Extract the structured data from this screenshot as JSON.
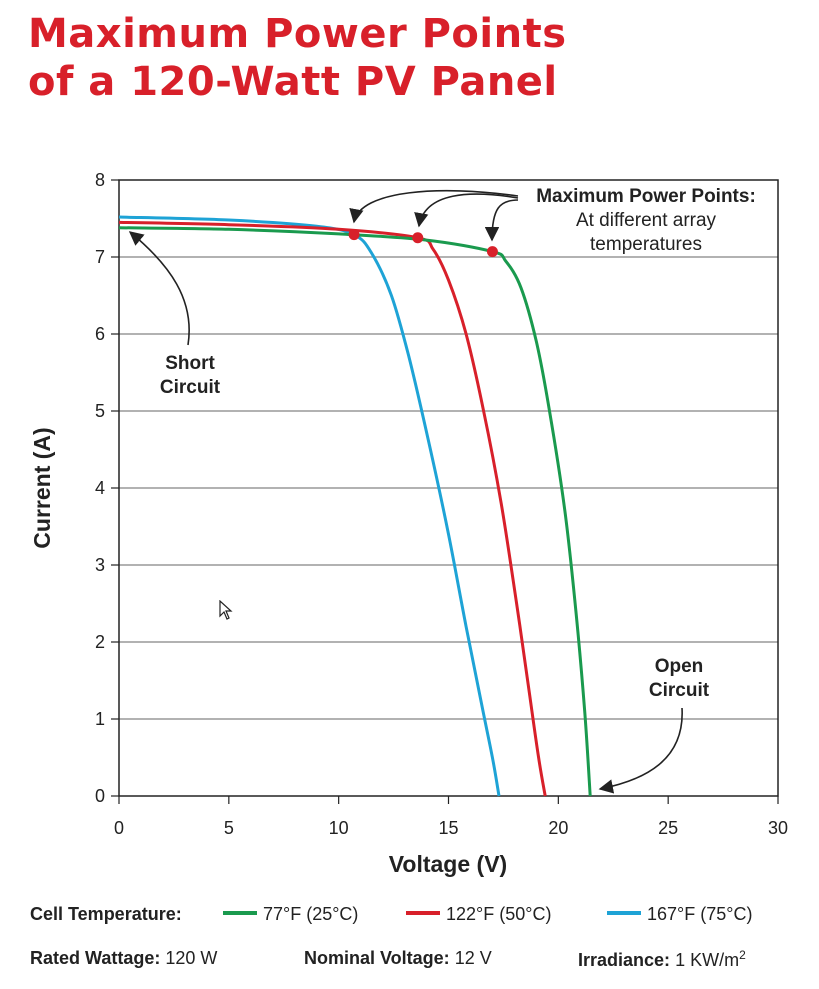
{
  "title_line1": "Maximum Power Points",
  "title_line2": "of a 120-Watt PV Panel",
  "chart_data": {
    "type": "line",
    "xlabel": "Voltage (V)",
    "ylabel": "Current (A)",
    "xlim": [
      0,
      30
    ],
    "ylim": [
      0,
      8
    ],
    "xticks": [
      "0",
      "5",
      "10",
      "15",
      "20",
      "25",
      "30"
    ],
    "yticks": [
      "0",
      "1",
      "2",
      "3",
      "4",
      "5",
      "6",
      "7",
      "8"
    ],
    "grid": "horizontal",
    "series": [
      {
        "name": "77°F (25°C)",
        "color": "#1a9a4e",
        "points": [
          [
            0,
            7.38
          ],
          [
            5,
            7.36
          ],
          [
            10,
            7.3
          ],
          [
            14,
            7.22
          ],
          [
            17.0,
            7.07
          ],
          [
            17.6,
            6.95
          ],
          [
            18.3,
            6.6
          ],
          [
            19.0,
            5.9
          ],
          [
            19.6,
            5.0
          ],
          [
            20.3,
            3.7
          ],
          [
            20.8,
            2.4
          ],
          [
            21.2,
            1.1
          ],
          [
            21.45,
            0
          ]
        ],
        "mpp": [
          17.0,
          7.07
        ]
      },
      {
        "name": "122°F (50°C)",
        "color": "#d8202a",
        "points": [
          [
            0,
            7.45
          ],
          [
            5,
            7.42
          ],
          [
            10,
            7.36
          ],
          [
            13.6,
            7.25
          ],
          [
            14.3,
            7.1
          ],
          [
            15.0,
            6.7
          ],
          [
            15.8,
            6.0
          ],
          [
            16.6,
            5.0
          ],
          [
            17.4,
            3.8
          ],
          [
            18.1,
            2.5
          ],
          [
            18.7,
            1.3
          ],
          [
            19.1,
            0.5
          ],
          [
            19.4,
            0
          ]
        ],
        "mpp": [
          13.6,
          7.25
        ]
      },
      {
        "name": "167°F (75°C)",
        "color": "#1ea3d6",
        "points": [
          [
            0,
            7.52
          ],
          [
            5,
            7.48
          ],
          [
            9,
            7.4
          ],
          [
            10.7,
            7.29
          ],
          [
            11.5,
            7.05
          ],
          [
            12.4,
            6.5
          ],
          [
            13.2,
            5.7
          ],
          [
            14.1,
            4.6
          ],
          [
            15.0,
            3.4
          ],
          [
            15.8,
            2.2
          ],
          [
            16.5,
            1.2
          ],
          [
            17.0,
            0.5
          ],
          [
            17.3,
            0
          ]
        ],
        "mpp": [
          10.7,
          7.29
        ]
      }
    ],
    "annotations": {
      "mpp_title": "Maximum Power Points:",
      "mpp_sub1": "At different array",
      "mpp_sub2": "temperatures",
      "short_1": "Short",
      "short_2": "Circuit",
      "open_1": "Open",
      "open_2": "Circuit"
    }
  },
  "legend": {
    "label": "Cell Temperature:",
    "items": [
      {
        "name": "77°F (25°C)",
        "color": "#1a9a4e"
      },
      {
        "name": "122°F (50°C)",
        "color": "#d8202a"
      },
      {
        "name": "167°F (75°C)",
        "color": "#1ea3d6"
      }
    ]
  },
  "specs": {
    "rated_label": "Rated Wattage:",
    "rated_value": "120 W",
    "nominal_label": "Nominal Voltage:",
    "nominal_value": "12 V",
    "irr_label": "Irradiance:",
    "irr_value": "1 KW/m",
    "irr_sup": "2"
  }
}
